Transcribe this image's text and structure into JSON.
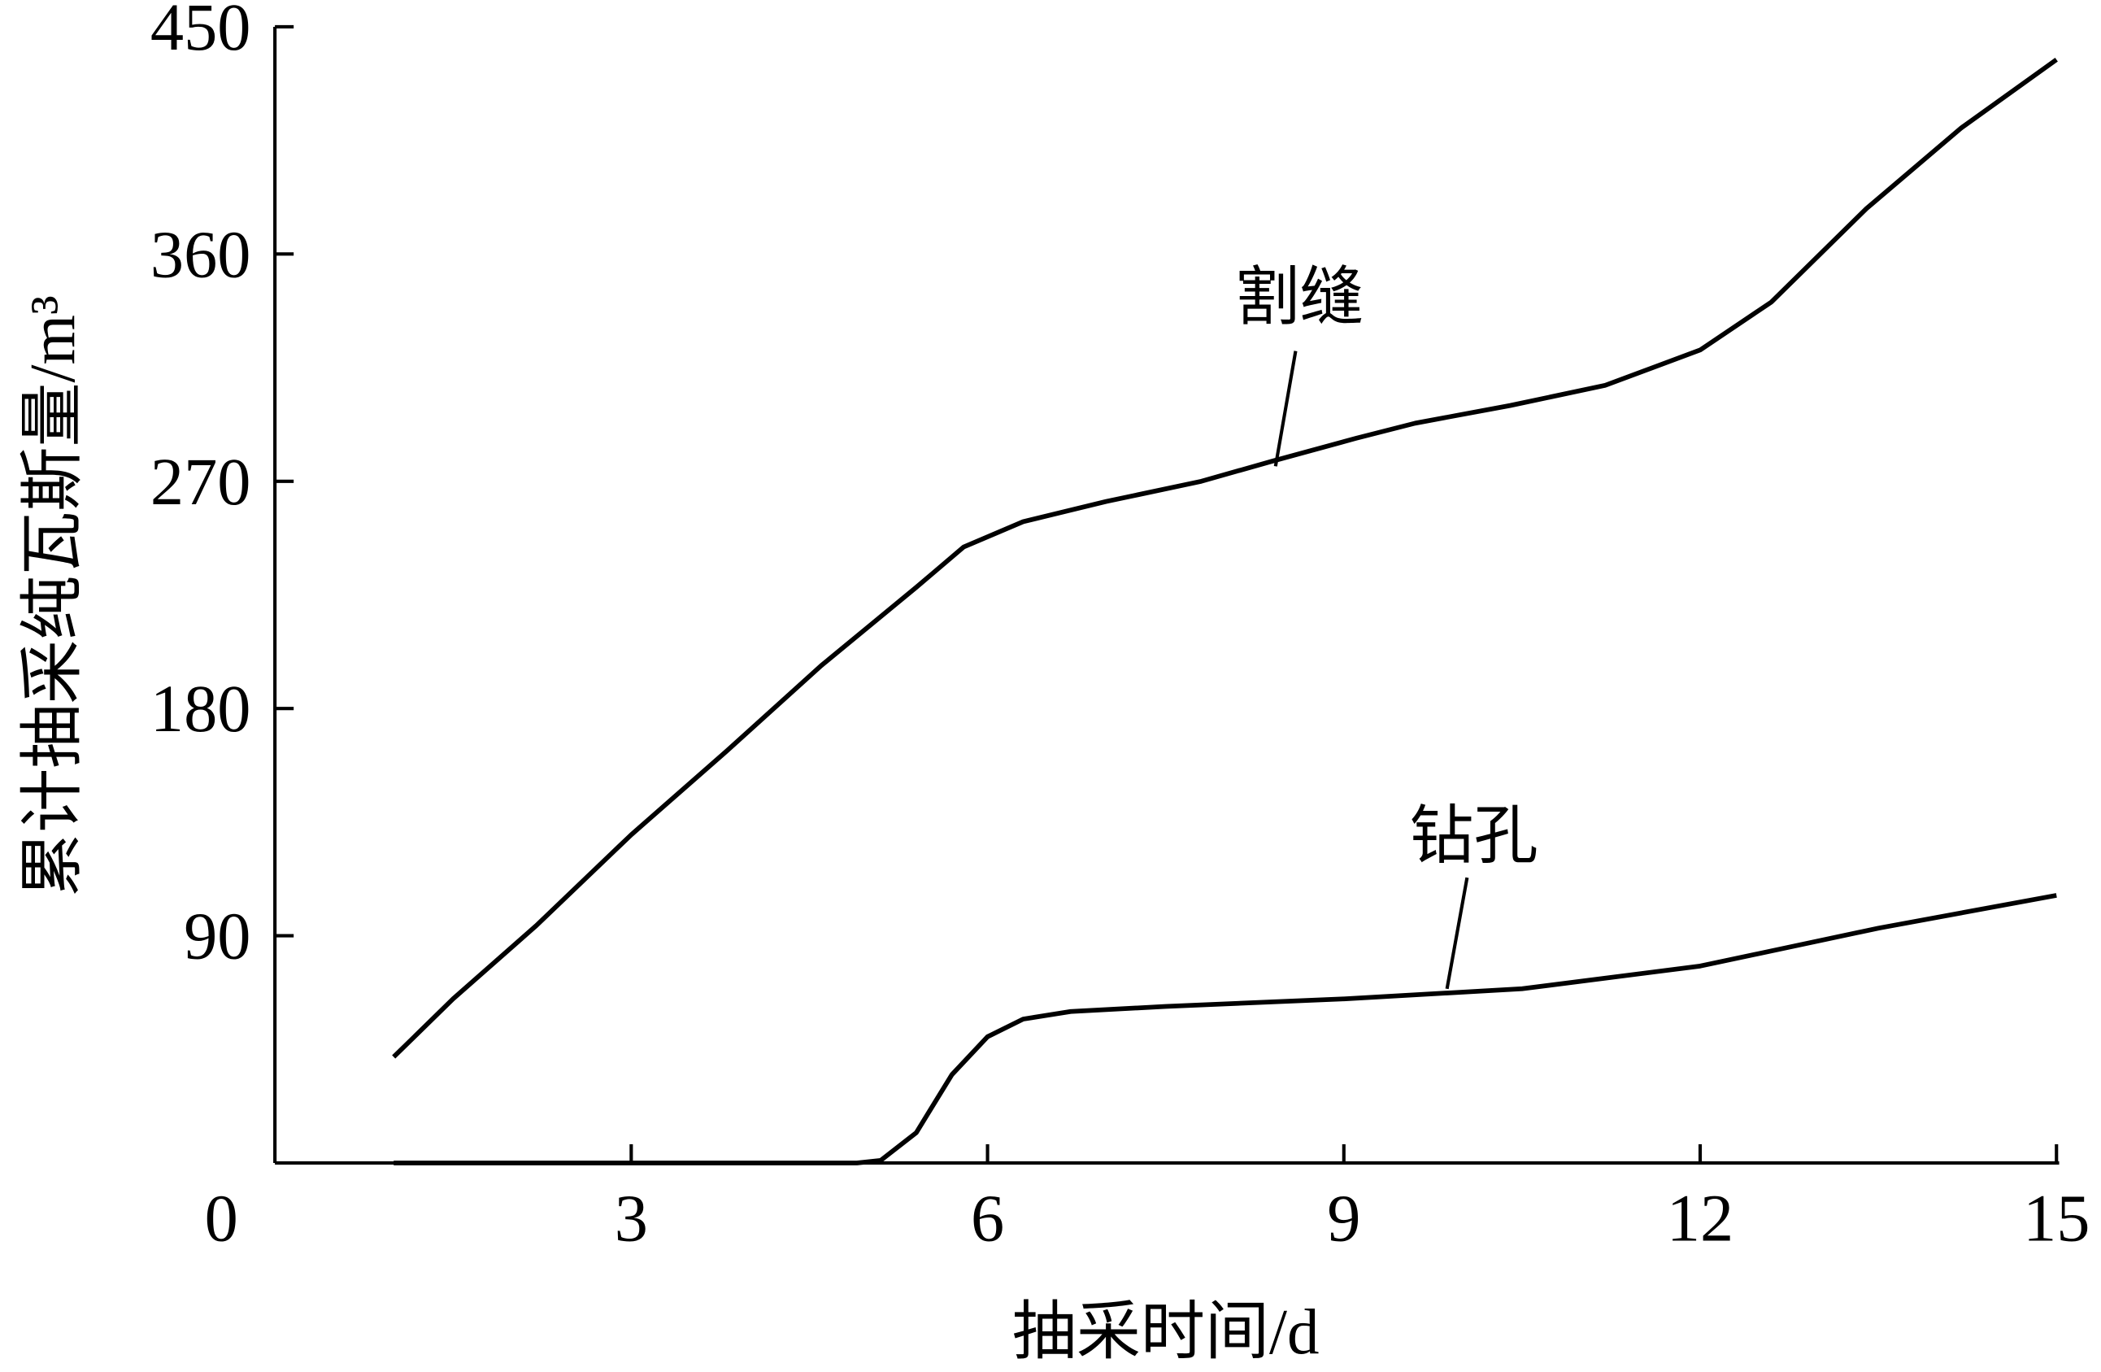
{
  "chart_data": {
    "type": "line",
    "x_label": "抽采时间/d",
    "y_label": "累计抽采纯瓦斯量/m³",
    "xlim": [
      0,
      15
    ],
    "xticks": [
      0,
      3,
      6,
      9,
      12,
      15
    ],
    "ylim": [
      0,
      450
    ],
    "yticks": [
      90,
      180,
      270,
      360,
      450
    ],
    "series": [
      {
        "name": "割缝",
        "color": "#000000",
        "x": [
          1.0,
          1.5,
          2.2,
          3,
          3.8,
          4.6,
          5.4,
          5.8,
          6.3,
          7,
          7.8,
          8.4,
          9.1,
          9.6,
          10.4,
          11.2,
          12,
          12.6,
          13.4,
          14.2,
          15
        ],
        "values": [
          42,
          65,
          94,
          130,
          163,
          197,
          228,
          244,
          254,
          262,
          270,
          278,
          287,
          293,
          300,
          308,
          322,
          341,
          378,
          410,
          437
        ]
      },
      {
        "name": "钻孔",
        "color": "#000000",
        "x": [
          1.0,
          3,
          4.9,
          5.1,
          5.4,
          5.7,
          6.0,
          6.3,
          6.7,
          7.5,
          9,
          10.5,
          12,
          13.5,
          15
        ],
        "values": [
          0,
          0,
          0,
          1,
          12,
          35,
          50,
          57,
          60,
          62,
          65,
          69,
          78,
          93,
          106
        ]
      }
    ]
  }
}
